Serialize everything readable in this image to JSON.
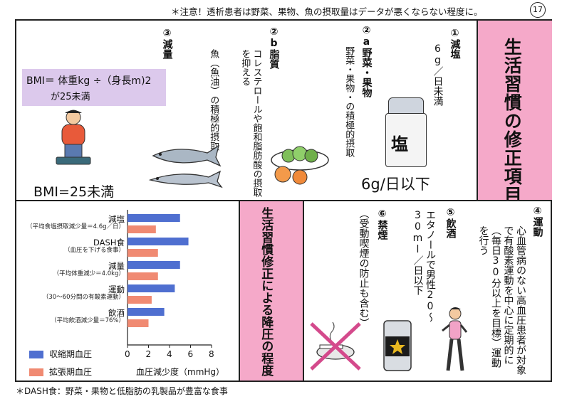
{
  "header": {
    "note": "＊注意！透析患者は野菜、果物、魚の摂取量はデータが悪くならない程度に。",
    "page_number": "17"
  },
  "top_panel": {
    "title": "生活習慣の修正項目",
    "salt": {
      "heading": "①減塩",
      "desc": "6g／日未満",
      "jar_label": "塩",
      "big_text": "6g/日以下"
    },
    "veg": {
      "heading": "②a野菜・果物",
      "desc": "野菜・果物・の積極的摂取"
    },
    "fat": {
      "heading": "②b脂質",
      "desc1": "コレステロールや飽和脂肪酸の摂取を抑える",
      "desc2": "魚（魚油）の積極的摂取"
    },
    "weight": {
      "heading": "③減量",
      "bmi_formula": "BMI＝ 体重kg ÷（身長m)2",
      "bmi_sub": "が25未満",
      "big_text": "BMI=25未満"
    }
  },
  "bottom_panel": {
    "title": "生活習慣修正による降圧の程度",
    "exercise": {
      "heading": "④運動",
      "desc": "心血管病のない高血圧患者が対象で有酸素運動を中心に定期的に（毎日30分以上を目標）運動を行う"
    },
    "alcohol": {
      "heading": "⑤飲酒",
      "desc": "エタノールで男性20〜30ml／日以下"
    },
    "smoking": {
      "heading": "⑥禁煙",
      "desc": "（受動喫煙の防止も含む）"
    }
  },
  "footer": {
    "note": "＊DASH食：野菜・果物と低脂肪の乳製品が豊富な食事"
  },
  "colors": {
    "systolic": "#4f6fd0",
    "diastolic": "#f08a72",
    "pink": "#f5a9c9",
    "lavender": "#dcc9ec"
  },
  "chart_data": {
    "type": "bar",
    "orientation": "horizontal",
    "categories": [
      {
        "name": "減塩",
        "sub": "（平均食塩摂取減少量＝4.6g／日）"
      },
      {
        "name": "DASH食",
        "sub": "（血圧を下げる食事）"
      },
      {
        "name": "減量",
        "sub": "（平均体重減少＝4.0kg）"
      },
      {
        "name": "運動",
        "sub": "（30〜60分間の有酸素運動）"
      },
      {
        "name": "飲酒",
        "sub": "（平均飲酒減少量＝76%）"
      }
    ],
    "series": [
      {
        "name": "収縮期血圧",
        "values": [
          5.0,
          5.8,
          5.0,
          4.5,
          3.5
        ]
      },
      {
        "name": "拡張期血圧",
        "values": [
          2.7,
          2.9,
          2.9,
          2.3,
          2.0
        ]
      }
    ],
    "xlabel": "血圧減少度（mmHg）",
    "xlim": [
      0,
      8
    ],
    "xticks": [
      "0",
      "2",
      "4",
      "6",
      "8"
    ],
    "legend_position": "bottom-left"
  }
}
